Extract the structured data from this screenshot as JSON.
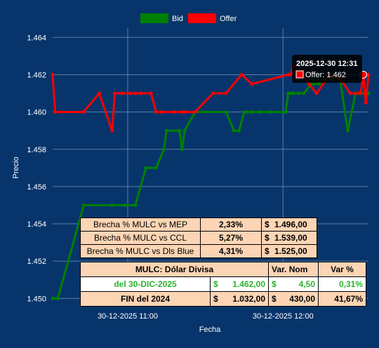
{
  "chart_data": {
    "type": "line",
    "xlabel": "Fecha",
    "ylabel": "Precio",
    "ylim": [
      1.4496,
      1.4645
    ],
    "xlim": [
      "2025-12-30 10:31",
      "2025-12-30 12:33"
    ],
    "yticks": [
      "1.450",
      "1.452",
      "1.454",
      "1.456",
      "1.458",
      "1.460",
      "1.462",
      "1.464"
    ],
    "xticks": [
      {
        "t": "2025-12-30 11:00",
        "label": "30-12-2025 11:00"
      },
      {
        "t": "2025-12-30 12:00",
        "label": "30-12-2025 12:00"
      }
    ],
    "grid": true,
    "legend_position": "top-center",
    "series": [
      {
        "name": "Bid",
        "color": "#008000",
        "x": [
          "2025-12-30 10:31",
          "2025-12-30 10:33",
          "2025-12-30 10:43",
          "2025-12-30 10:54",
          "2025-12-30 10:59",
          "2025-12-30 11:03",
          "2025-12-30 11:07",
          "2025-12-30 11:11",
          "2025-12-30 11:14",
          "2025-12-30 11:15",
          "2025-12-30 11:20",
          "2025-12-30 11:21",
          "2025-12-30 11:22",
          "2025-12-30 11:26",
          "2025-12-30 11:38",
          "2025-12-30 11:41",
          "2025-12-30 11:43",
          "2025-12-30 11:45",
          "2025-12-30 11:46",
          "2025-12-30 11:48",
          "2025-12-30 11:51",
          "2025-12-30 11:55",
          "2025-12-30 12:00",
          "2025-12-30 12:01",
          "2025-12-30 12:02",
          "2025-12-30 12:03",
          "2025-12-30 12:04",
          "2025-12-30 12:06",
          "2025-12-30 12:08",
          "2025-12-30 12:11",
          "2025-12-30 12:14",
          "2025-12-30 12:16",
          "2025-12-30 12:18",
          "2025-12-30 12:20",
          "2025-12-30 12:21",
          "2025-12-30 12:22",
          "2025-12-30 12:25",
          "2025-12-30 12:28",
          "2025-12-30 12:29",
          "2025-12-30 12:30",
          "2025-12-30 12:31",
          "2025-12-30 12:32",
          "2025-12-30 12:33"
        ],
        "values": [
          1.45,
          1.45,
          1.455,
          1.455,
          1.455,
          1.455,
          1.457,
          1.457,
          1.458,
          1.459,
          1.459,
          1.458,
          1.459,
          1.46,
          1.46,
          1.459,
          1.459,
          1.46,
          1.46,
          1.46,
          1.46,
          1.46,
          1.46,
          1.46,
          1.461,
          1.461,
          1.461,
          1.461,
          1.461,
          1.4615,
          1.4615,
          1.4618,
          1.4618,
          1.4618,
          1.4618,
          1.4618,
          1.459,
          1.461,
          1.461,
          1.461,
          1.461,
          1.461,
          1.461
        ]
      },
      {
        "name": "Offer",
        "color": "#ff0000",
        "x": [
          "2025-12-30 10:31",
          "2025-12-30 10:32",
          "2025-12-30 10:43",
          "2025-12-30 10:49",
          "2025-12-30 10:54",
          "2025-12-30 10:55",
          "2025-12-30 10:58",
          "2025-12-30 11:01",
          "2025-12-30 11:03",
          "2025-12-30 11:05",
          "2025-12-30 11:09",
          "2025-12-30 11:11",
          "2025-12-30 11:13",
          "2025-12-30 11:18",
          "2025-12-30 11:21",
          "2025-12-30 11:22",
          "2025-12-30 11:26",
          "2025-12-30 11:33",
          "2025-12-30 11:38",
          "2025-12-30 11:44",
          "2025-12-30 11:48",
          "2025-12-30 12:02",
          "2025-12-30 12:03",
          "2025-12-30 12:04",
          "2025-12-30 12:10",
          "2025-12-30 12:13",
          "2025-12-30 12:18",
          "2025-12-30 12:22",
          "2025-12-30 12:26",
          "2025-12-30 12:29",
          "2025-12-30 12:30",
          "2025-12-30 12:31",
          "2025-12-30 12:32",
          "2025-12-30 12:33"
        ],
        "values": [
          1.462,
          1.46,
          1.46,
          1.461,
          1.459,
          1.461,
          1.461,
          1.461,
          1.461,
          1.461,
          1.461,
          1.46,
          1.46,
          1.46,
          1.46,
          1.46,
          1.46,
          1.461,
          1.461,
          1.462,
          1.4615,
          1.462,
          1.462,
          1.4625,
          1.4615,
          1.461,
          1.462,
          1.4618,
          1.461,
          1.461,
          1.461,
          1.462,
          1.4605,
          1.462
        ]
      }
    ],
    "tooltip": {
      "title": "2025-12-30 12:31",
      "series": "Offer",
      "value": "1.462",
      "x": "2025-12-30 12:31",
      "y": 1.462
    }
  },
  "legend": {
    "bid_label": "Bid",
    "offer_label": "Offer",
    "bid_color": "#008000",
    "offer_color": "#ff0000"
  },
  "brecha_table": {
    "rows": [
      {
        "label": "Brecha % MULC vs MEP",
        "pct": "2,33%",
        "currency": "$",
        "value": "1.496,00"
      },
      {
        "label": "Brecha % MULC vs CCL",
        "pct": "5,27%",
        "currency": "$",
        "value": "1.539,00"
      },
      {
        "label": "Brecha % MULC vs Dls Blue",
        "pct": "4,31%",
        "currency": "$",
        "value": "1.525,00"
      }
    ]
  },
  "mulc_table": {
    "title": "MULC: Dólar Divisa",
    "var_nom_header": "Var. Nom",
    "var_pct_header": "Var %",
    "rows": [
      {
        "label": "del 30-DIC-2025",
        "currency": "$",
        "value": "1.462,00",
        "var_currency": "$",
        "var_nom": "4,50",
        "var_pct": "0,31%"
      },
      {
        "label": "FIN del 2024",
        "currency": "$",
        "value": "1.032,00",
        "var_currency": "$",
        "var_nom": "430,00",
        "var_pct": "41,67%"
      }
    ]
  }
}
